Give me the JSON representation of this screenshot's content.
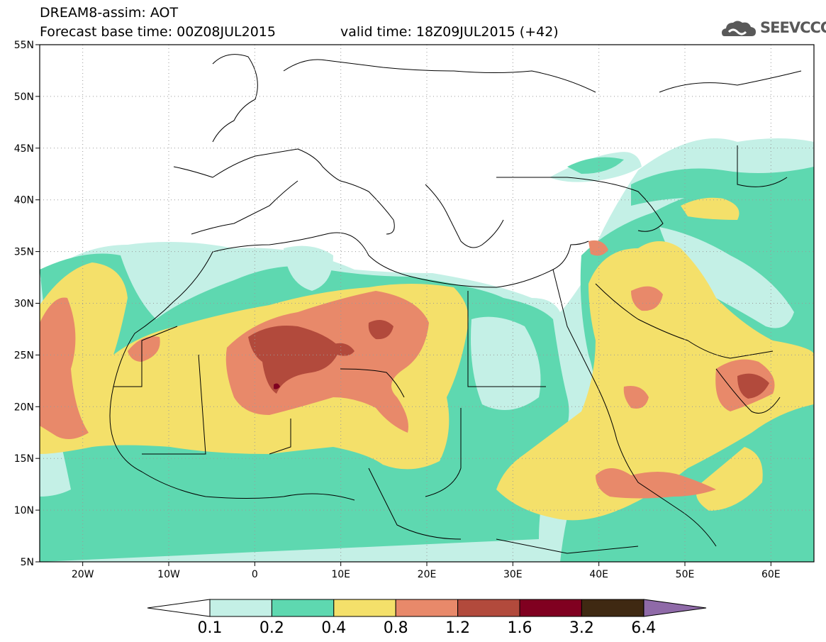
{
  "header": {
    "line1": "DREAM8-assim: AOT",
    "line2": "Forecast base time: 00Z08JUL2015",
    "line3": "valid time: 18Z09JUL2015 (+42)"
  },
  "logo": {
    "text": "SEEVCCC"
  },
  "map": {
    "lat_ticks": [
      "55N",
      "50N",
      "45N",
      "40N",
      "35N",
      "30N",
      "25N",
      "20N",
      "15N",
      "10N",
      "5N"
    ],
    "lon_ticks": [
      "20W",
      "10W",
      "0",
      "10E",
      "20E",
      "30E",
      "40E",
      "50E",
      "60E"
    ],
    "lon_range": [
      -25,
      65
    ],
    "lat_range": [
      5,
      55
    ],
    "grid": "dotted"
  },
  "colorbar": {
    "levels": [
      "0.1",
      "0.2",
      "0.4",
      "0.8",
      "1.2",
      "1.6",
      "3.2",
      "6.4"
    ],
    "colors": {
      "l1": "#c4f0e6",
      "l2": "#5ed8b0",
      "l3": "#f4e06a",
      "l4": "#e8896a",
      "l5": "#b24a3c",
      "l6": "#800020",
      "l7": "#3f2912",
      "l8": "#8f6aa8"
    }
  }
}
